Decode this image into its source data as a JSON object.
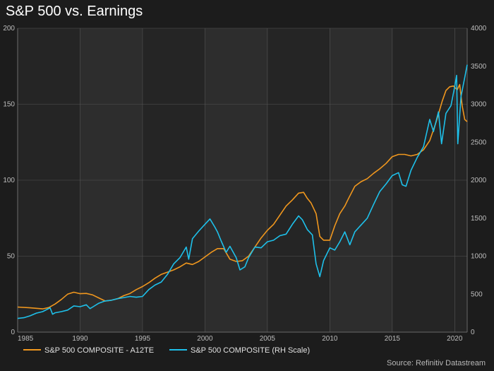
{
  "title": "S&P 500 vs. Earnings",
  "source": "Source: Refinitiv Datastream",
  "colors": {
    "background": "#1c1c1c",
    "plot_bg": "#252525",
    "band": "#2d2d2d",
    "grid": "#555555",
    "earnings": "#f0971e",
    "index": "#1ec0ea"
  },
  "chart_data": {
    "type": "line",
    "title": "S&P 500 vs. Earnings",
    "xlim": [
      1985,
      2021
    ],
    "x_ticks": [
      "1985",
      "1990",
      "1995",
      "2000",
      "2005",
      "2010",
      "2015",
      "2020"
    ],
    "ylim_left": [
      0,
      200
    ],
    "y_ticks_left": [
      "0",
      "50",
      "100",
      "150",
      "200"
    ],
    "ylim_right": [
      0,
      4000
    ],
    "y_ticks_right": [
      "0",
      "500",
      "1000",
      "1500",
      "2000",
      "2500",
      "3000",
      "3500",
      "4000"
    ],
    "grid": true,
    "legend_position": "bottom",
    "series": [
      {
        "name": "S&P 500 COMPOSITE - A12TE",
        "axis": "left",
        "color": "#f0971e",
        "points": [
          [
            1985.0,
            16.5
          ],
          [
            1986.0,
            16.0
          ],
          [
            1987.0,
            15.3
          ],
          [
            1987.5,
            16.2
          ],
          [
            1988.0,
            18.5
          ],
          [
            1988.5,
            21.5
          ],
          [
            1989.0,
            25.0
          ],
          [
            1989.5,
            26.3
          ],
          [
            1990.0,
            25.3
          ],
          [
            1990.5,
            25.5
          ],
          [
            1991.0,
            24.5
          ],
          [
            1991.5,
            22.5
          ],
          [
            1992.0,
            20.5
          ],
          [
            1992.5,
            21.0
          ],
          [
            1993.0,
            22.0
          ],
          [
            1993.5,
            24.0
          ],
          [
            1994.0,
            25.5
          ],
          [
            1994.5,
            28.0
          ],
          [
            1995.0,
            30.0
          ],
          [
            1995.5,
            32.5
          ],
          [
            1996.0,
            35.5
          ],
          [
            1996.5,
            38.0
          ],
          [
            1997.0,
            39.5
          ],
          [
            1997.5,
            41.0
          ],
          [
            1998.0,
            43.0
          ],
          [
            1998.5,
            45.5
          ],
          [
            1999.0,
            44.5
          ],
          [
            1999.5,
            46.5
          ],
          [
            2000.0,
            49.5
          ],
          [
            2000.5,
            52.5
          ],
          [
            2001.0,
            55.0
          ],
          [
            2001.5,
            55.0
          ],
          [
            2002.0,
            48.0
          ],
          [
            2002.5,
            46.5
          ],
          [
            2003.0,
            47.0
          ],
          [
            2003.5,
            50.0
          ],
          [
            2004.0,
            56.0
          ],
          [
            2004.5,
            62.0
          ],
          [
            2005.0,
            67.0
          ],
          [
            2005.5,
            71.0
          ],
          [
            2006.0,
            77.0
          ],
          [
            2006.5,
            83.0
          ],
          [
            2007.0,
            87.0
          ],
          [
            2007.5,
            91.5
          ],
          [
            2007.9,
            92.0
          ],
          [
            2008.2,
            88.0
          ],
          [
            2008.5,
            85.0
          ],
          [
            2008.9,
            78.0
          ],
          [
            2009.2,
            63.0
          ],
          [
            2009.5,
            60.5
          ],
          [
            2010.0,
            60.5
          ],
          [
            2010.4,
            70.0
          ],
          [
            2010.8,
            78.0
          ],
          [
            2011.2,
            83.0
          ],
          [
            2011.5,
            88.0
          ],
          [
            2012.0,
            96.0
          ],
          [
            2012.5,
            99.0
          ],
          [
            2013.0,
            101.0
          ],
          [
            2013.5,
            104.5
          ],
          [
            2014.0,
            107.5
          ],
          [
            2014.5,
            111.0
          ],
          [
            2015.0,
            115.5
          ],
          [
            2015.5,
            117.0
          ],
          [
            2016.0,
            117.0
          ],
          [
            2016.5,
            116.0
          ],
          [
            2017.0,
            117.0
          ],
          [
            2017.5,
            120.0
          ],
          [
            2018.0,
            126.0
          ],
          [
            2018.5,
            138.0
          ],
          [
            2019.0,
            152.0
          ],
          [
            2019.3,
            159.0
          ],
          [
            2019.6,
            161.5
          ],
          [
            2019.9,
            162.0
          ],
          [
            2020.2,
            159.5
          ],
          [
            2020.4,
            163.0
          ],
          [
            2020.6,
            149.0
          ],
          [
            2020.8,
            140.0
          ],
          [
            2021.0,
            138.5
          ]
        ]
      },
      {
        "name": "S&P 500 COMPOSITE (RH Scale)",
        "axis": "right",
        "color": "#1ec0ea",
        "points": [
          [
            1985.0,
            180
          ],
          [
            1985.5,
            190
          ],
          [
            1986.0,
            215
          ],
          [
            1986.5,
            250
          ],
          [
            1987.0,
            270
          ],
          [
            1987.6,
            320
          ],
          [
            1987.8,
            235
          ],
          [
            1988.0,
            255
          ],
          [
            1988.5,
            270
          ],
          [
            1989.0,
            290
          ],
          [
            1989.5,
            345
          ],
          [
            1990.0,
            335
          ],
          [
            1990.5,
            360
          ],
          [
            1990.8,
            310
          ],
          [
            1991.0,
            330
          ],
          [
            1991.5,
            380
          ],
          [
            1992.0,
            410
          ],
          [
            1992.5,
            420
          ],
          [
            1993.0,
            440
          ],
          [
            1993.5,
            455
          ],
          [
            1994.0,
            470
          ],
          [
            1994.5,
            460
          ],
          [
            1995.0,
            470
          ],
          [
            1995.5,
            560
          ],
          [
            1996.0,
            620
          ],
          [
            1996.5,
            660
          ],
          [
            1997.0,
            760
          ],
          [
            1997.5,
            900
          ],
          [
            1998.0,
            980
          ],
          [
            1998.5,
            1120
          ],
          [
            1998.7,
            960
          ],
          [
            1999.0,
            1230
          ],
          [
            1999.5,
            1330
          ],
          [
            2000.0,
            1420
          ],
          [
            2000.4,
            1490
          ],
          [
            2000.8,
            1380
          ],
          [
            2001.0,
            1320
          ],
          [
            2001.3,
            1200
          ],
          [
            2001.7,
            1050
          ],
          [
            2002.0,
            1130
          ],
          [
            2002.5,
            980
          ],
          [
            2002.8,
            820
          ],
          [
            2003.2,
            860
          ],
          [
            2003.5,
            980
          ],
          [
            2004.0,
            1120
          ],
          [
            2004.5,
            1110
          ],
          [
            2005.0,
            1190
          ],
          [
            2005.5,
            1210
          ],
          [
            2006.0,
            1270
          ],
          [
            2006.5,
            1290
          ],
          [
            2007.0,
            1420
          ],
          [
            2007.5,
            1530
          ],
          [
            2007.8,
            1480
          ],
          [
            2008.2,
            1350
          ],
          [
            2008.6,
            1280
          ],
          [
            2008.9,
            900
          ],
          [
            2009.2,
            730
          ],
          [
            2009.5,
            940
          ],
          [
            2010.0,
            1110
          ],
          [
            2010.4,
            1080
          ],
          [
            2010.8,
            1190
          ],
          [
            2011.2,
            1320
          ],
          [
            2011.6,
            1150
          ],
          [
            2012.0,
            1320
          ],
          [
            2012.5,
            1410
          ],
          [
            2013.0,
            1500
          ],
          [
            2013.5,
            1680
          ],
          [
            2014.0,
            1850
          ],
          [
            2014.5,
            1950
          ],
          [
            2015.0,
            2060
          ],
          [
            2015.5,
            2100
          ],
          [
            2015.8,
            1940
          ],
          [
            2016.1,
            1920
          ],
          [
            2016.5,
            2130
          ],
          [
            2017.0,
            2300
          ],
          [
            2017.5,
            2440
          ],
          [
            2018.0,
            2800
          ],
          [
            2018.3,
            2640
          ],
          [
            2018.7,
            2900
          ],
          [
            2018.95,
            2480
          ],
          [
            2019.3,
            2880
          ],
          [
            2019.7,
            2980
          ],
          [
            2020.0,
            3230
          ],
          [
            2020.15,
            3380
          ],
          [
            2020.25,
            2480
          ],
          [
            2020.5,
            3100
          ],
          [
            2020.8,
            3350
          ],
          [
            2021.0,
            3520
          ]
        ]
      }
    ]
  }
}
